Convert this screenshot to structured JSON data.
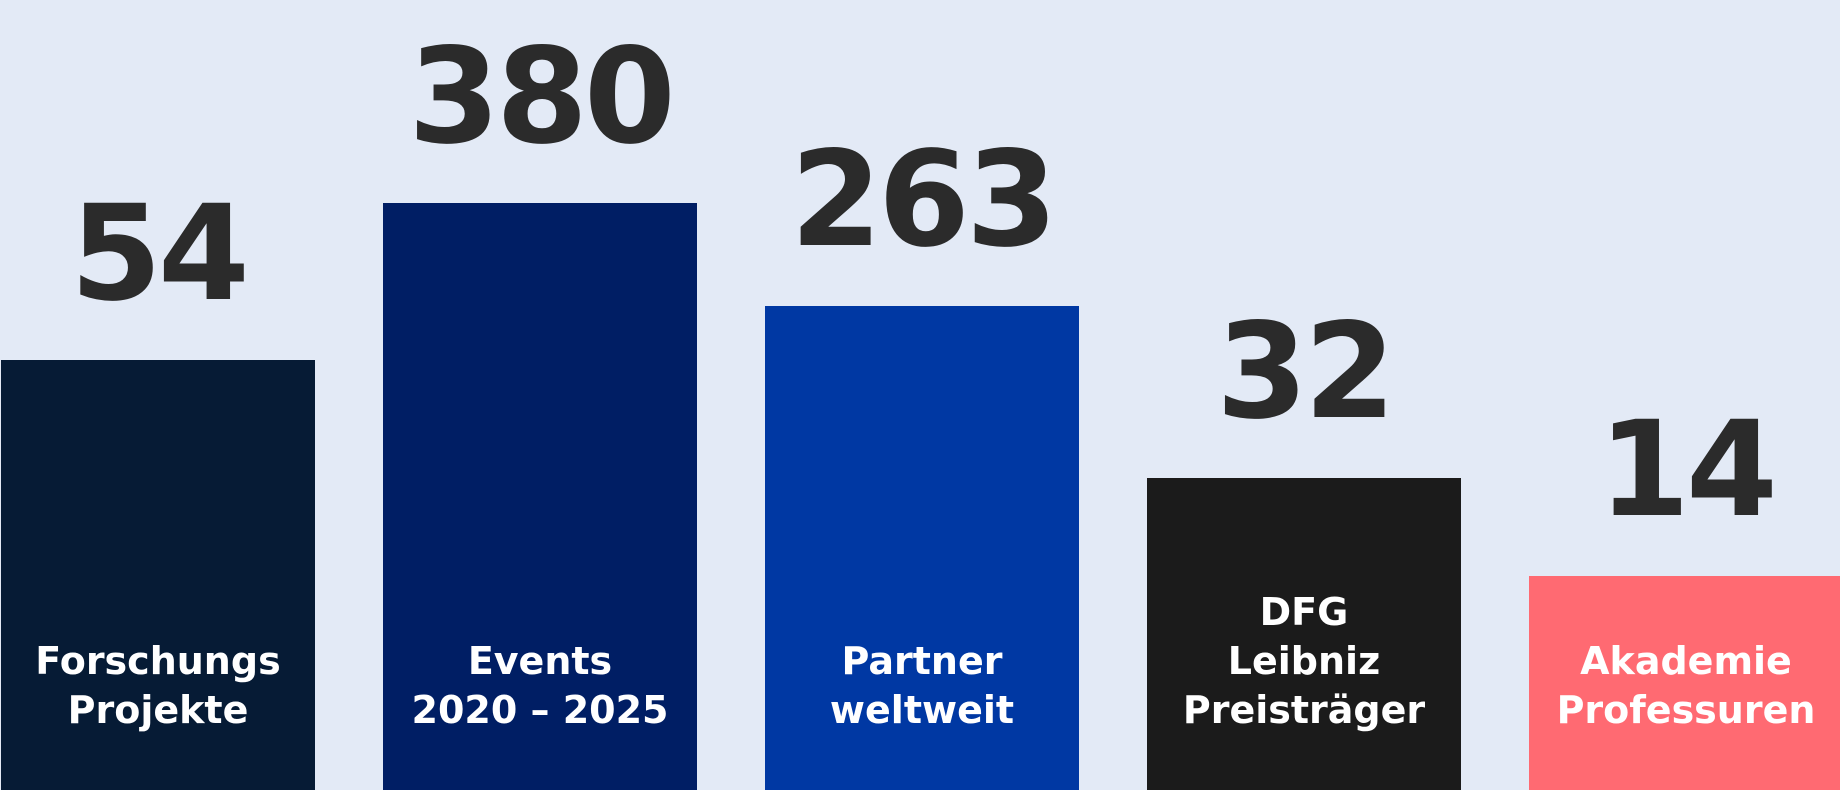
{
  "chart_data": {
    "type": "bar",
    "categories": [
      [
        "Forschungs",
        "Projekte"
      ],
      [
        "Events",
        "2020 – 2025"
      ],
      [
        "Partner",
        "weltweit"
      ],
      [
        "DFG",
        "Leibniz",
        "Preisträger"
      ],
      [
        "Akademie",
        "Professuren"
      ]
    ],
    "values": [
      54,
      380,
      263,
      32,
      14
    ],
    "value_labels": [
      "54",
      "380",
      "263",
      "32",
      "14"
    ],
    "colors": [
      "#061b35",
      "#001e64",
      "#0038a3",
      "#1b1b1b",
      "#ff6a72"
    ],
    "title": "",
    "xlabel": "",
    "ylabel": "",
    "grid": false,
    "legend": "none"
  }
}
